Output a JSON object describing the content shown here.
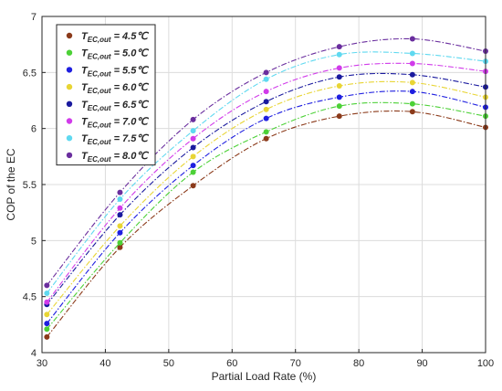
{
  "chart_data": {
    "type": "line",
    "xlabel": "Partial Load Rate (%)",
    "ylabel": "COP of the EC",
    "xlim": [
      30,
      100
    ],
    "ylim": [
      4,
      7
    ],
    "xticks": [
      "30",
      "40",
      "50",
      "60",
      "70",
      "80",
      "90",
      "100"
    ],
    "yticks": [
      "4",
      "4.5",
      "5",
      "5.5",
      "6",
      "6.5",
      "7"
    ],
    "grid": true,
    "legend_position": "top-left",
    "x": [
      30.77,
      42.31,
      53.85,
      65.38,
      76.92,
      88.46,
      100
    ],
    "series": [
      {
        "legend_prefix": "T",
        "legend_sub": "EC,out",
        "legend_value": " = 4.5℃",
        "color": "#8B3A1A",
        "values": [
          4.14,
          4.94,
          5.49,
          5.91,
          6.11,
          6.15,
          6.01
        ]
      },
      {
        "legend_prefix": "T",
        "legend_sub": "EC,out",
        "legend_value": " = 5.0℃",
        "color": "#4CD137",
        "values": [
          4.21,
          4.98,
          5.61,
          5.97,
          6.2,
          6.22,
          6.11
        ]
      },
      {
        "legend_prefix": "T",
        "legend_sub": "EC,out",
        "legend_value": " = 5.5℃",
        "color": "#1F1FE0",
        "values": [
          4.26,
          5.07,
          5.67,
          6.09,
          6.28,
          6.33,
          6.19
        ]
      },
      {
        "legend_prefix": "T",
        "legend_sub": "EC,out",
        "legend_value": " = 6.0℃",
        "color": "#E8D534",
        "values": [
          4.34,
          5.13,
          5.75,
          6.17,
          6.38,
          6.41,
          6.28
        ]
      },
      {
        "legend_prefix": "T",
        "legend_sub": "EC,out",
        "legend_value": " = 6.5℃",
        "color": "#1A1A9E",
        "values": [
          4.43,
          5.23,
          5.83,
          6.24,
          6.46,
          6.48,
          6.37
        ]
      },
      {
        "legend_prefix": "T",
        "legend_sub": "EC,out",
        "legend_value": " = 7.0℃",
        "color": "#D13BEA",
        "values": [
          4.45,
          5.29,
          5.91,
          6.33,
          6.54,
          6.58,
          6.51
        ]
      },
      {
        "legend_prefix": "T",
        "legend_sub": "EC,out",
        "legend_value": " = 7.5℃",
        "color": "#5FD9F0",
        "values": [
          4.53,
          5.37,
          5.98,
          6.44,
          6.66,
          6.67,
          6.6
        ]
      },
      {
        "legend_prefix": "T",
        "legend_sub": "EC,out",
        "legend_value": " = 8.0℃",
        "color": "#6A2E9E",
        "values": [
          4.6,
          5.43,
          6.08,
          6.5,
          6.73,
          6.8,
          6.69
        ]
      }
    ]
  }
}
